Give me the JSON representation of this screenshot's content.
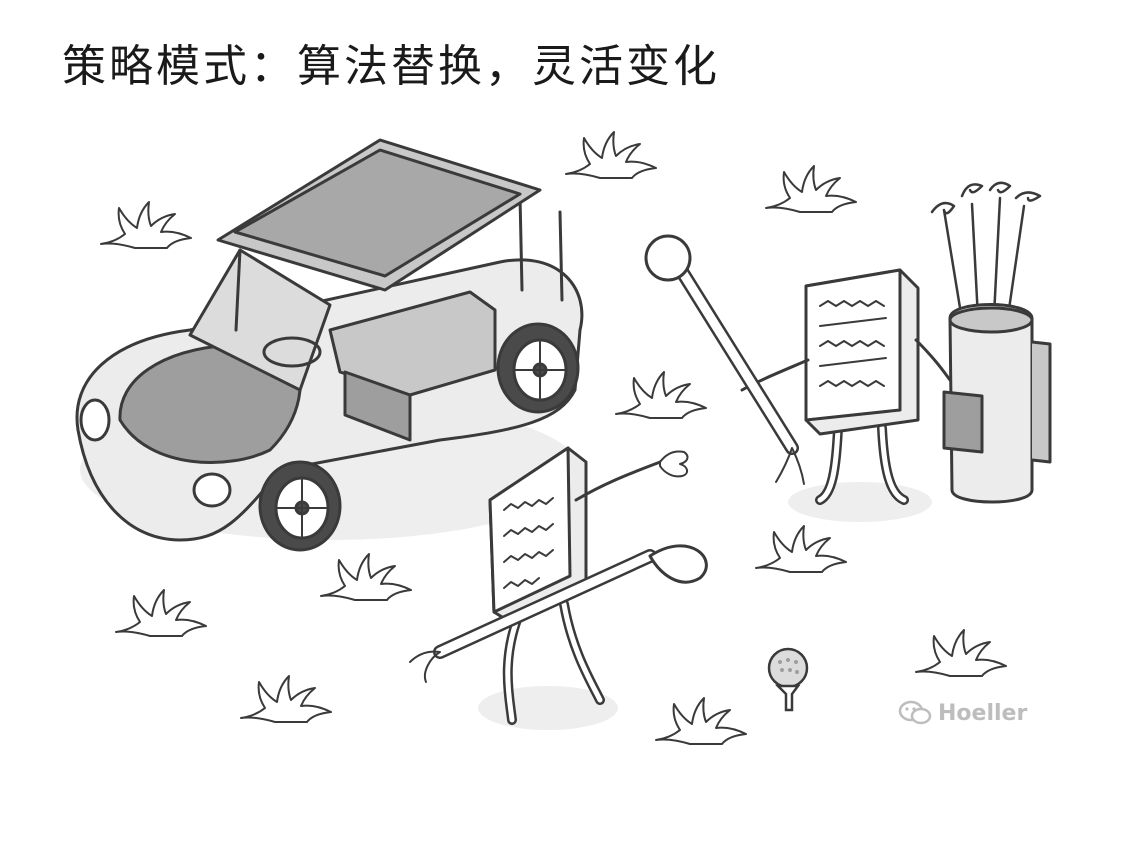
{
  "title": "策略模式：算法替换，灵活变化",
  "watermark": {
    "text": "Hoeller",
    "icon": "wechat-icon"
  },
  "palette": {
    "line": "#3a3a3a",
    "fill_dark": "#9e9e9e",
    "fill_mid": "#c8c8c8",
    "fill_light": "#ececec",
    "shadow": "#e6e6e6"
  }
}
